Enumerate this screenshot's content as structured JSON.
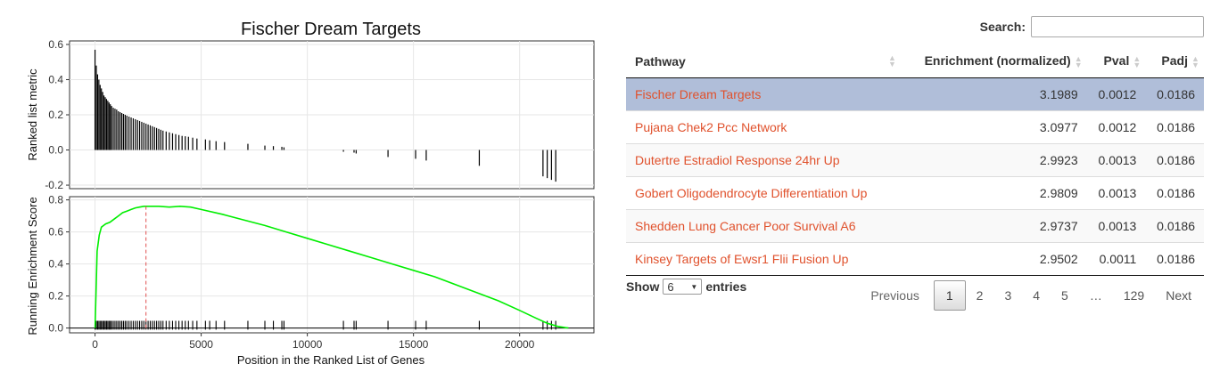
{
  "plot": {
    "title": "Fischer Dream Targets",
    "top_ylabel": "Ranked list metric",
    "bottom_ylabel": "Running Enrichment Score",
    "xlabel": "Position in the Ranked List of Genes",
    "top_yticks": [
      "0.6",
      "0.4",
      "0.2",
      "0.0",
      "-0.2"
    ],
    "bottom_yticks": [
      "0.8",
      "0.6",
      "0.4",
      "0.2",
      "0.0"
    ],
    "xticks": [
      "0",
      "5000",
      "10000",
      "15000",
      "20000"
    ],
    "line_color": "#00ee00",
    "peak_line_color": "#e05050"
  },
  "chart_data": {
    "type": "line",
    "xlim": [
      -1200,
      23500
    ],
    "top_panel": {
      "ylim": [
        -0.22,
        0.62
      ],
      "note": "gene hit positions with ranked list metric values",
      "hits_x": [
        0,
        60,
        120,
        180,
        240,
        300,
        360,
        420,
        480,
        540,
        600,
        660,
        720,
        780,
        860,
        940,
        1020,
        1100,
        1180,
        1260,
        1340,
        1420,
        1500,
        1600,
        1700,
        1800,
        1900,
        2000,
        2100,
        2200,
        2300,
        2400,
        2500,
        2600,
        2700,
        2800,
        2900,
        3000,
        3100,
        3200,
        3350,
        3500,
        3650,
        3800,
        3950,
        4100,
        4250,
        4400,
        4600,
        4800,
        5200,
        5400,
        5700,
        6100,
        7200,
        8000,
        8400,
        8800,
        8900,
        11700,
        12200,
        12300,
        13800,
        15100,
        15600,
        18100,
        21100,
        21300,
        21500,
        21700
      ],
      "hits_y": [
        0.57,
        0.48,
        0.43,
        0.4,
        0.37,
        0.35,
        0.33,
        0.31,
        0.3,
        0.29,
        0.28,
        0.27,
        0.26,
        0.25,
        0.24,
        0.235,
        0.23,
        0.22,
        0.215,
        0.21,
        0.205,
        0.2,
        0.195,
        0.19,
        0.185,
        0.18,
        0.175,
        0.17,
        0.165,
        0.16,
        0.155,
        0.15,
        0.145,
        0.14,
        0.135,
        0.13,
        0.125,
        0.12,
        0.115,
        0.11,
        0.105,
        0.1,
        0.095,
        0.09,
        0.085,
        0.08,
        0.078,
        0.075,
        0.07,
        0.065,
        0.06,
        0.055,
        0.05,
        0.045,
        0.035,
        0.025,
        0.022,
        0.018,
        0.015,
        -0.01,
        -0.015,
        -0.02,
        -0.04,
        -0.05,
        -0.06,
        -0.09,
        -0.15,
        -0.16,
        -0.17,
        -0.18
      ]
    },
    "bottom_panel": {
      "ylim": [
        -0.03,
        0.82
      ],
      "running_es_x": [
        0,
        50,
        100,
        200,
        300,
        500,
        700,
        900,
        1100,
        1300,
        1500,
        1700,
        1900,
        2100,
        2300,
        2500,
        3000,
        3500,
        4000,
        4500,
        5000,
        6000,
        7000,
        8000,
        9000,
        10000,
        11000,
        12000,
        13000,
        14000,
        15000,
        16000,
        17000,
        18000,
        19000,
        20000,
        20800,
        21300,
        21800,
        22300
      ],
      "running_es_y": [
        0.0,
        0.25,
        0.48,
        0.58,
        0.63,
        0.65,
        0.66,
        0.68,
        0.7,
        0.72,
        0.73,
        0.74,
        0.75,
        0.755,
        0.76,
        0.76,
        0.76,
        0.755,
        0.76,
        0.755,
        0.74,
        0.71,
        0.675,
        0.64,
        0.6,
        0.56,
        0.52,
        0.48,
        0.44,
        0.4,
        0.36,
        0.32,
        0.27,
        0.22,
        0.17,
        0.11,
        0.06,
        0.03,
        0.01,
        0.0
      ],
      "peak_x": 2400,
      "peak_y": 0.76
    }
  },
  "search": {
    "label": "Search:",
    "value": ""
  },
  "table": {
    "headers": {
      "pathway": "Pathway",
      "enrichment": "Enrichment (normalized)",
      "pval": "Pval",
      "padj": "Padj"
    },
    "rows": [
      {
        "pathway": "Fischer Dream Targets",
        "enrichment": "3.1989",
        "pval": "0.0012",
        "padj": "0.0186"
      },
      {
        "pathway": "Pujana Chek2 Pcc Network",
        "enrichment": "3.0977",
        "pval": "0.0012",
        "padj": "0.0186"
      },
      {
        "pathway": "Dutertre Estradiol Response 24hr Up",
        "enrichment": "2.9923",
        "pval": "0.0013",
        "padj": "0.0186"
      },
      {
        "pathway": "Gobert Oligodendrocyte Differentiation Up",
        "enrichment": "2.9809",
        "pval": "0.0013",
        "padj": "0.0186"
      },
      {
        "pathway": "Shedden Lung Cancer Poor Survival A6",
        "enrichment": "2.9737",
        "pval": "0.0013",
        "padj": "0.0186"
      },
      {
        "pathway": "Kinsey Targets of Ewsr1 Flii Fusion Up",
        "enrichment": "2.9502",
        "pval": "0.0011",
        "padj": "0.0186"
      }
    ],
    "selected_row": 0,
    "link_color": "#e0512c",
    "selected_color": "#b0bed9"
  },
  "length": {
    "show": "Show",
    "value": "6",
    "entries": "entries"
  },
  "pager": {
    "previous": "Previous",
    "pages": [
      "1",
      "2",
      "3",
      "4",
      "5",
      "…",
      "129"
    ],
    "current": "1",
    "next": "Next"
  }
}
